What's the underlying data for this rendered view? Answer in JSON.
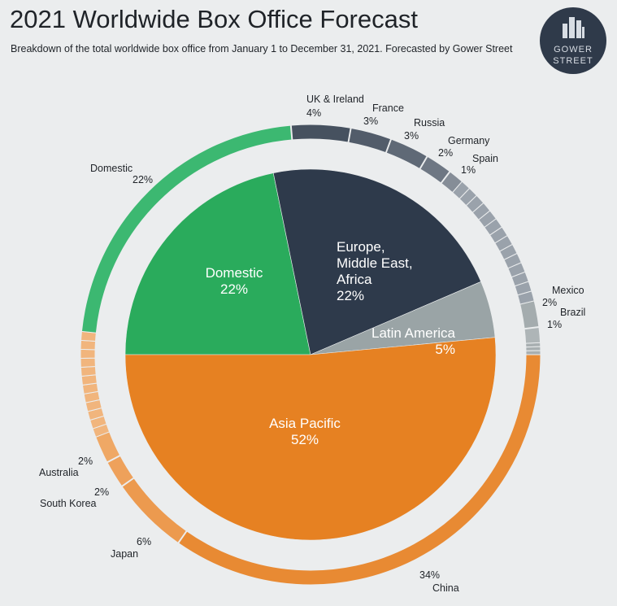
{
  "header": {
    "title": "2021 Worldwide Box Office Forecast",
    "subtitle": "Breakdown of the total worldwide box office from January 1 to December 31, 2021. Forecasted by Gower Street"
  },
  "logo": {
    "line1": "GOWER",
    "line2": "STREET",
    "icon": "building-icon",
    "color": "#2f3a4a"
  },
  "chart_data": {
    "type": "pie",
    "inner": [
      {
        "label": "Domestic",
        "value": 22,
        "display": "22%",
        "color": "#2aab5c",
        "lines": [
          "Domestic",
          "22%"
        ]
      },
      {
        "label": "Europe, Middle East, Africa",
        "value": 22,
        "display": "22%",
        "color": "#2e3a4b",
        "lines": [
          "Europe,",
          "Middle East,",
          "Africa",
          "22%"
        ]
      },
      {
        "label": "Latin America",
        "value": 5,
        "display": "5%",
        "color": "#9aa4a6",
        "lines": [
          "Latin America",
          "5%"
        ]
      },
      {
        "label": "Asia Pacific",
        "value": 52,
        "display": "52%",
        "color": "#e68122",
        "lines": [
          "Asia Pacific",
          "52%"
        ]
      }
    ],
    "outer": [
      {
        "label": "Domestic",
        "value": 22,
        "display": "22%",
        "color": "#3cb871"
      },
      {
        "label": "UK & Ireland",
        "value": 4,
        "display": "4%",
        "color": "#46515f"
      },
      {
        "label": "France",
        "value": 3,
        "display": "3%",
        "color": "#525c6a"
      },
      {
        "label": "Russia",
        "value": 3,
        "display": "3%",
        "color": "#5f6976"
      },
      {
        "label": "Germany",
        "value": 2,
        "display": "2%",
        "color": "#6e7783"
      },
      {
        "label": "Spain",
        "value": 1,
        "display": "1%",
        "color": "#858d97"
      },
      {
        "label": "Mexico",
        "value": 2,
        "display": "2%",
        "color": "#a4acae"
      },
      {
        "label": "Brazil",
        "value": 1,
        "display": "1%",
        "color": "#aeb5b7"
      },
      {
        "label": "China",
        "value": 34,
        "display": "34%",
        "color": "#e88a33"
      },
      {
        "label": "Japan",
        "value": 6,
        "display": "6%",
        "color": "#ec9a4f"
      },
      {
        "label": "South Korea",
        "value": 2,
        "display": "2%",
        "color": "#eea15b"
      },
      {
        "label": "Australia",
        "value": 2,
        "display": "2%",
        "color": "#efa865"
      }
    ]
  }
}
